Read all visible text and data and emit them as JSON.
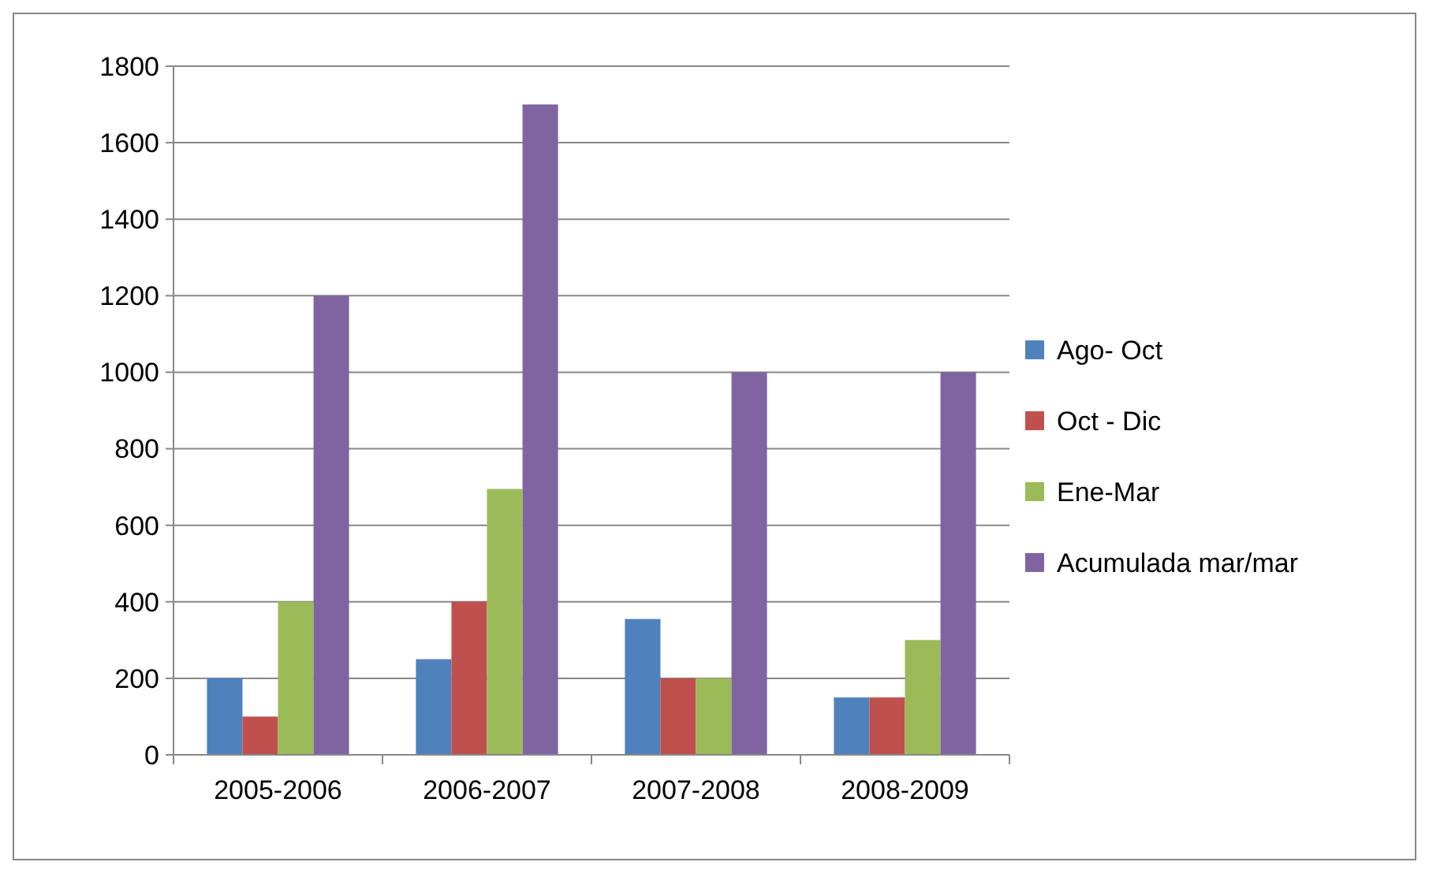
{
  "chart_data": {
    "type": "bar",
    "categories": [
      "2005-2006",
      "2006-2007",
      "2007-2008",
      "2008-2009"
    ],
    "series": [
      {
        "name": "Ago- Oct",
        "color": "#4f81bd",
        "values": [
          200,
          250,
          355,
          150
        ]
      },
      {
        "name": "Oct - Dic",
        "color": "#c0504d",
        "values": [
          100,
          400,
          200,
          150
        ]
      },
      {
        "name": "Ene-Mar",
        "color": "#9bbb59",
        "values": [
          400,
          695,
          200,
          300
        ]
      },
      {
        "name": "Acumulada mar/mar",
        "color": "#8064a2",
        "values": [
          1200,
          1700,
          1000,
          1000
        ]
      }
    ],
    "ylim": [
      0,
      1800
    ],
    "yticks": [
      0,
      200,
      400,
      600,
      800,
      1000,
      1200,
      1400,
      1600,
      1800
    ],
    "grid": "y",
    "legend": "right"
  }
}
